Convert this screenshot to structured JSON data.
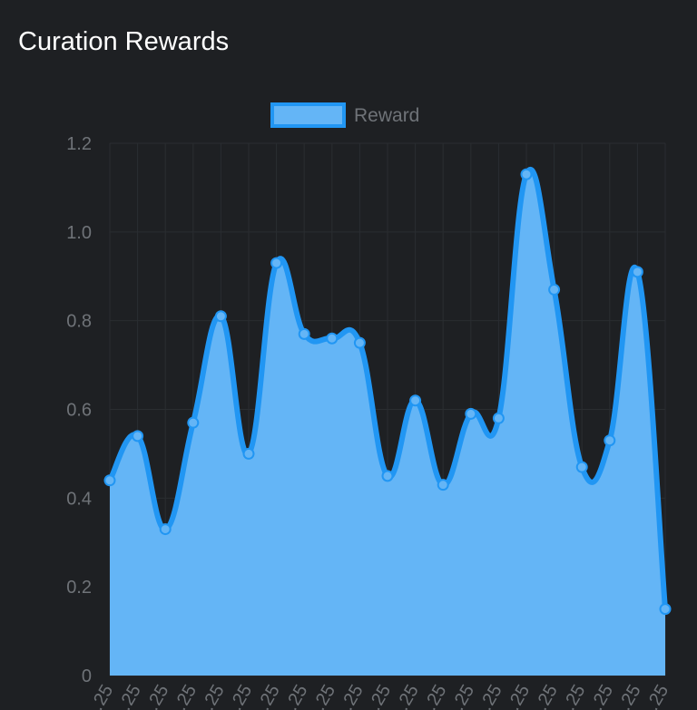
{
  "header": {
    "title": "Curation Rewards"
  },
  "colors": {
    "background": "#1e2023",
    "line": "#2196f3",
    "fill": "#64b5f6",
    "point_fill": "#64b5f6",
    "point_stroke": "#2196f3",
    "grid": "#2a2d31",
    "tick_text": "#6f7378",
    "title_text": "#ffffff"
  },
  "chart_data": {
    "type": "area",
    "title": "Curation Rewards",
    "legend": {
      "position": "top-center",
      "entries": [
        "Reward"
      ]
    },
    "grid": true,
    "ylim": [
      0,
      1.2
    ],
    "y_ticks": [
      0,
      0.2,
      0.4,
      0.6,
      0.8,
      1.0,
      1.2
    ],
    "y_tick_labels": [
      "0",
      "0.2",
      "0.4",
      "0.6",
      "0.8",
      "1.0",
      "1.2"
    ],
    "x_tick_labels": [
      "…25",
      "…25",
      "…25",
      "…25",
      "…25",
      "…25",
      "…25",
      "…25",
      "…25",
      "…25",
      "…25",
      "…25",
      "…25",
      "…25",
      "…25",
      "…25",
      "…25",
      "…25",
      "…25",
      "…25",
      "…25"
    ],
    "series": [
      {
        "name": "Reward",
        "values": [
          0.44,
          0.54,
          0.33,
          0.57,
          0.81,
          0.5,
          0.93,
          0.77,
          0.76,
          0.75,
          0.45,
          0.62,
          0.43,
          0.59,
          0.58,
          1.13,
          0.87,
          0.47,
          0.53,
          0.91,
          0.15
        ]
      }
    ]
  }
}
